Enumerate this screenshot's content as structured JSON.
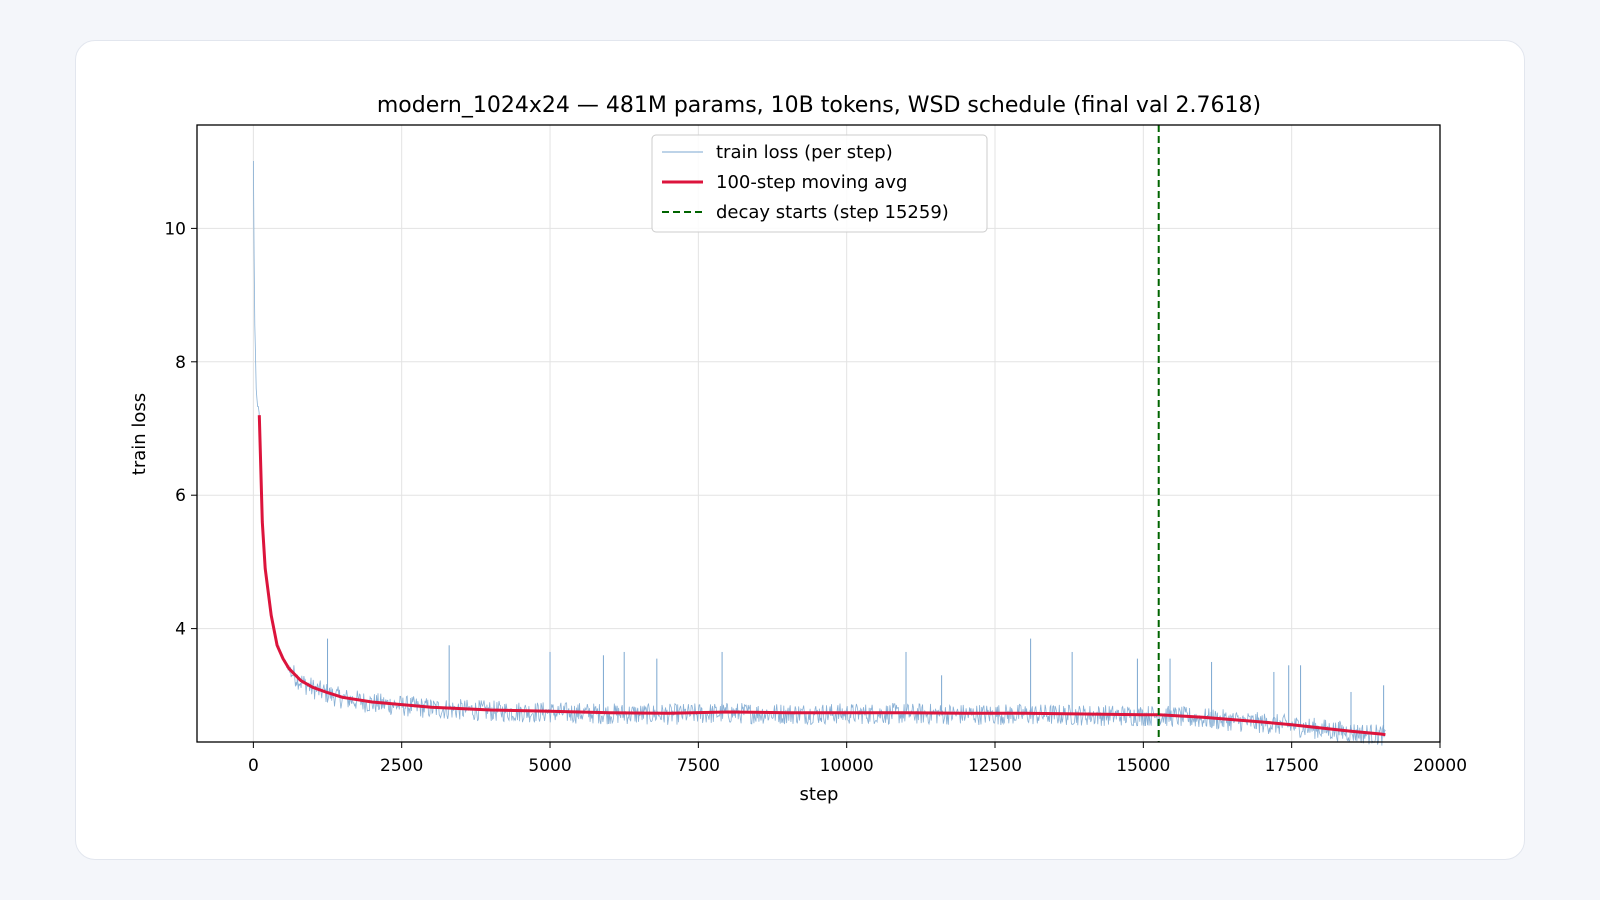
{
  "chart_data": {
    "type": "line",
    "title": "modern_1024x24 — 481M params, 10B tokens, WSD schedule (final val 2.7618)",
    "xlabel": "step",
    "ylabel": "train loss",
    "xlim": [
      -950,
      20000
    ],
    "ylim": [
      2.3,
      11.55
    ],
    "xticks": [
      0,
      2500,
      5000,
      7500,
      10000,
      12500,
      15000,
      17500,
      20000
    ],
    "yticks": [
      4,
      6,
      8,
      10
    ],
    "grid": true,
    "legend_position": "upper center",
    "colors": {
      "raw": "#7ba7d0",
      "avg": "#dc143c",
      "decay": "#006400"
    },
    "series": [
      {
        "name": "train loss (per step)",
        "style": "thin noisy line",
        "x": [
          0,
          20,
          50,
          100,
          150,
          200,
          300,
          400,
          500,
          600,
          800,
          1000,
          1250,
          1500,
          2000,
          2500,
          3000,
          3500,
          4000,
          5000,
          6000,
          7000,
          8000,
          9000,
          10000,
          11000,
          12000,
          13000,
          14000,
          15000,
          15259,
          16000,
          17000,
          17500,
          18000,
          18500,
          19000,
          19080
        ],
        "y": [
          11.0,
          8.7,
          7.5,
          7.2,
          5.6,
          4.9,
          4.2,
          3.75,
          3.55,
          3.4,
          3.22,
          3.12,
          3.04,
          2.97,
          2.9,
          2.86,
          2.82,
          2.8,
          2.78,
          2.76,
          2.74,
          2.73,
          2.75,
          2.74,
          2.74,
          2.74,
          2.73,
          2.73,
          2.72,
          2.71,
          2.71,
          2.67,
          2.6,
          2.56,
          2.51,
          2.46,
          2.42,
          2.41
        ],
        "spikes": [
          {
            "x": 1250,
            "y": 3.85
          },
          {
            "x": 3300,
            "y": 3.75
          },
          {
            "x": 5000,
            "y": 3.65
          },
          {
            "x": 5900,
            "y": 3.6
          },
          {
            "x": 6250,
            "y": 3.65
          },
          {
            "x": 6800,
            "y": 3.55
          },
          {
            "x": 7900,
            "y": 3.65
          },
          {
            "x": 11000,
            "y": 3.65
          },
          {
            "x": 11600,
            "y": 3.3
          },
          {
            "x": 13100,
            "y": 3.85
          },
          {
            "x": 13800,
            "y": 3.65
          },
          {
            "x": 14900,
            "y": 3.55
          },
          {
            "x": 15450,
            "y": 3.55
          },
          {
            "x": 16150,
            "y": 3.5
          },
          {
            "x": 17200,
            "y": 3.35
          },
          {
            "x": 17450,
            "y": 3.45
          },
          {
            "x": 17650,
            "y": 3.45
          },
          {
            "x": 18500,
            "y": 3.05
          },
          {
            "x": 19050,
            "y": 3.15
          }
        ]
      },
      {
        "name": "100-step moving avg",
        "style": "thick line",
        "x": [
          100,
          150,
          200,
          300,
          400,
          500,
          600,
          800,
          1000,
          1250,
          1500,
          2000,
          2500,
          3000,
          3500,
          4000,
          5000,
          6000,
          7000,
          8000,
          9000,
          10000,
          11000,
          12000,
          13000,
          14000,
          15000,
          15259,
          16000,
          17000,
          17500,
          18000,
          18500,
          19000,
          19080
        ],
        "y": [
          7.2,
          5.6,
          4.9,
          4.2,
          3.75,
          3.55,
          3.4,
          3.22,
          3.12,
          3.04,
          2.97,
          2.9,
          2.86,
          2.82,
          2.8,
          2.78,
          2.76,
          2.74,
          2.73,
          2.75,
          2.74,
          2.74,
          2.74,
          2.73,
          2.73,
          2.72,
          2.71,
          2.71,
          2.67,
          2.6,
          2.56,
          2.51,
          2.46,
          2.42,
          2.41
        ]
      },
      {
        "name": "decay starts (step 15259)",
        "style": "dashed vertical line",
        "x": 15259
      }
    ]
  }
}
